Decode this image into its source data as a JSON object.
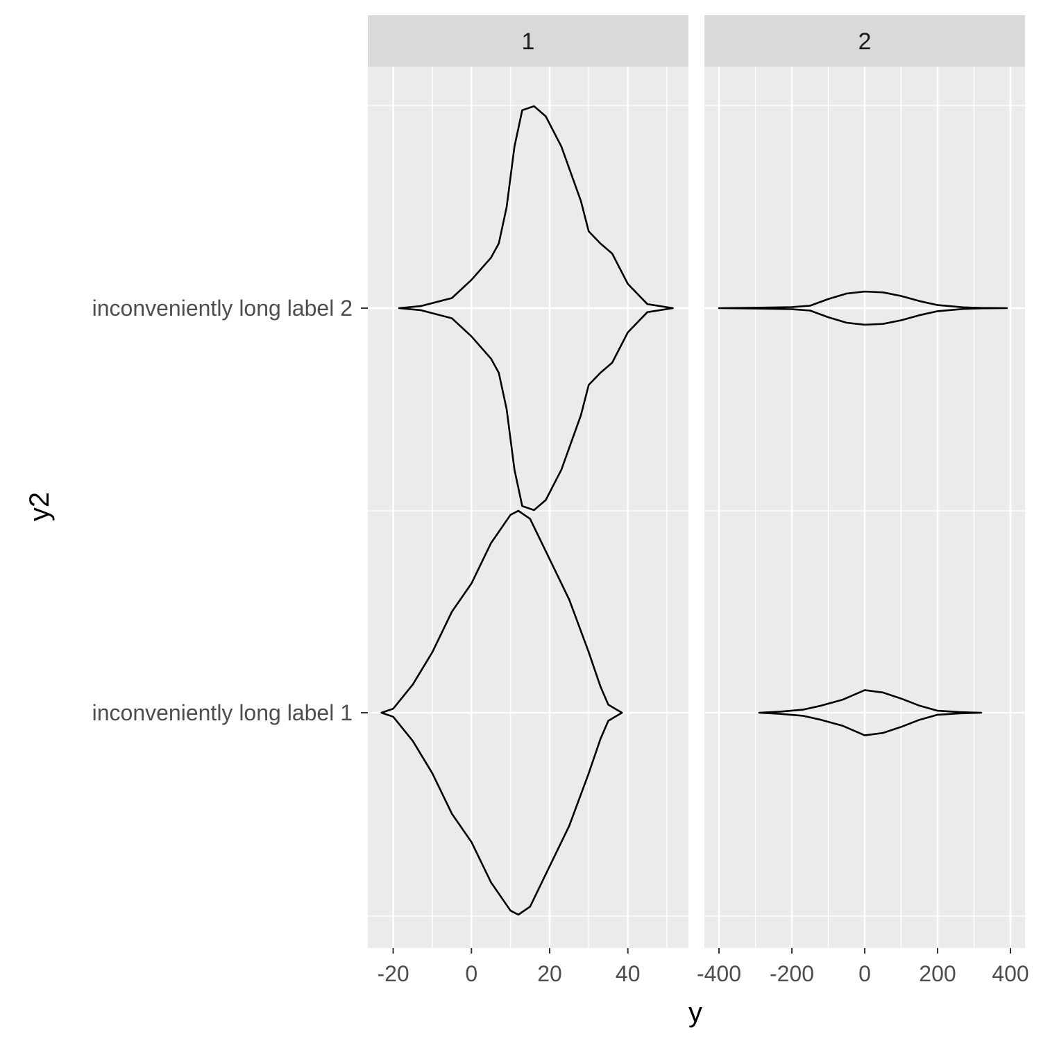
{
  "chart_data": {
    "type": "violin",
    "xlabel": "y",
    "ylabel": "y2",
    "categories": [
      "inconveniently long label 1",
      "inconveniently long label 2"
    ],
    "grid": true,
    "colors": {
      "panel_bg": "#ebebeb",
      "strip_bg": "#d9d9d9",
      "grid": "#ffffff",
      "outline": "#000000",
      "tick_text": "#4d4d4d"
    },
    "panels": [
      {
        "strip": "1",
        "xlim": [
          -26.5,
          55.5
        ],
        "xticks": [
          -20,
          0,
          20,
          40
        ],
        "xtick_labels": [
          "-20",
          "0",
          "20",
          "40"
        ],
        "violins": [
          {
            "category": "inconveniently long label 1",
            "profile": [
              [
                -23,
                0
              ],
              [
                -20,
                0.02
              ],
              [
                -15,
                0.14
              ],
              [
                -10,
                0.3
              ],
              [
                -5,
                0.5
              ],
              [
                0,
                0.64
              ],
              [
                5,
                0.84
              ],
              [
                10,
                0.98
              ],
              [
                12,
                1.0
              ],
              [
                15,
                0.96
              ],
              [
                20,
                0.76
              ],
              [
                25,
                0.56
              ],
              [
                30,
                0.3
              ],
              [
                33,
                0.13
              ],
              [
                35,
                0.04
              ],
              [
                38.5,
                0
              ]
            ]
          },
          {
            "category": "inconveniently long label 2",
            "profile": [
              [
                -18.5,
                0
              ],
              [
                -13,
                0.01
              ],
              [
                -5,
                0.05
              ],
              [
                0,
                0.14
              ],
              [
                5,
                0.25
              ],
              [
                7,
                0.32
              ],
              [
                9,
                0.5
              ],
              [
                11,
                0.8
              ],
              [
                13,
                0.98
              ],
              [
                16,
                1.0
              ],
              [
                19,
                0.95
              ],
              [
                23,
                0.8
              ],
              [
                28,
                0.53
              ],
              [
                30,
                0.38
              ],
              [
                33,
                0.32
              ],
              [
                36,
                0.27
              ],
              [
                40,
                0.12
              ],
              [
                45,
                0.02
              ],
              [
                51.5,
                0
              ]
            ]
          }
        ]
      },
      {
        "strip": "2",
        "xlim": [
          -440,
          440
        ],
        "xticks": [
          -400,
          -200,
          0,
          200,
          400
        ],
        "xtick_labels": [
          "-400",
          "-200",
          "0",
          "200",
          "400"
        ],
        "violins": [
          {
            "category": "inconveniently long label 1",
            "profile": [
              [
                -290,
                0
              ],
              [
                -230,
                0.006
              ],
              [
                -170,
                0.015
              ],
              [
                -120,
                0.035
              ],
              [
                -60,
                0.065
              ],
              [
                0,
                0.112
              ],
              [
                50,
                0.1
              ],
              [
                100,
                0.07
              ],
              [
                150,
                0.035
              ],
              [
                200,
                0.01
              ],
              [
                260,
                0.003
              ],
              [
                320,
                0
              ]
            ]
          },
          {
            "category": "inconveniently long label 2",
            "profile": [
              [
                -400,
                0
              ],
              [
                -300,
                0.002
              ],
              [
                -200,
                0.005
              ],
              [
                -150,
                0.012
              ],
              [
                -100,
                0.045
              ],
              [
                -50,
                0.072
              ],
              [
                0,
                0.082
              ],
              [
                50,
                0.078
              ],
              [
                100,
                0.06
              ],
              [
                150,
                0.035
              ],
              [
                200,
                0.015
              ],
              [
                270,
                0.004
              ],
              [
                320,
                0.001
              ],
              [
                390,
                0
              ]
            ]
          }
        ]
      }
    ]
  }
}
